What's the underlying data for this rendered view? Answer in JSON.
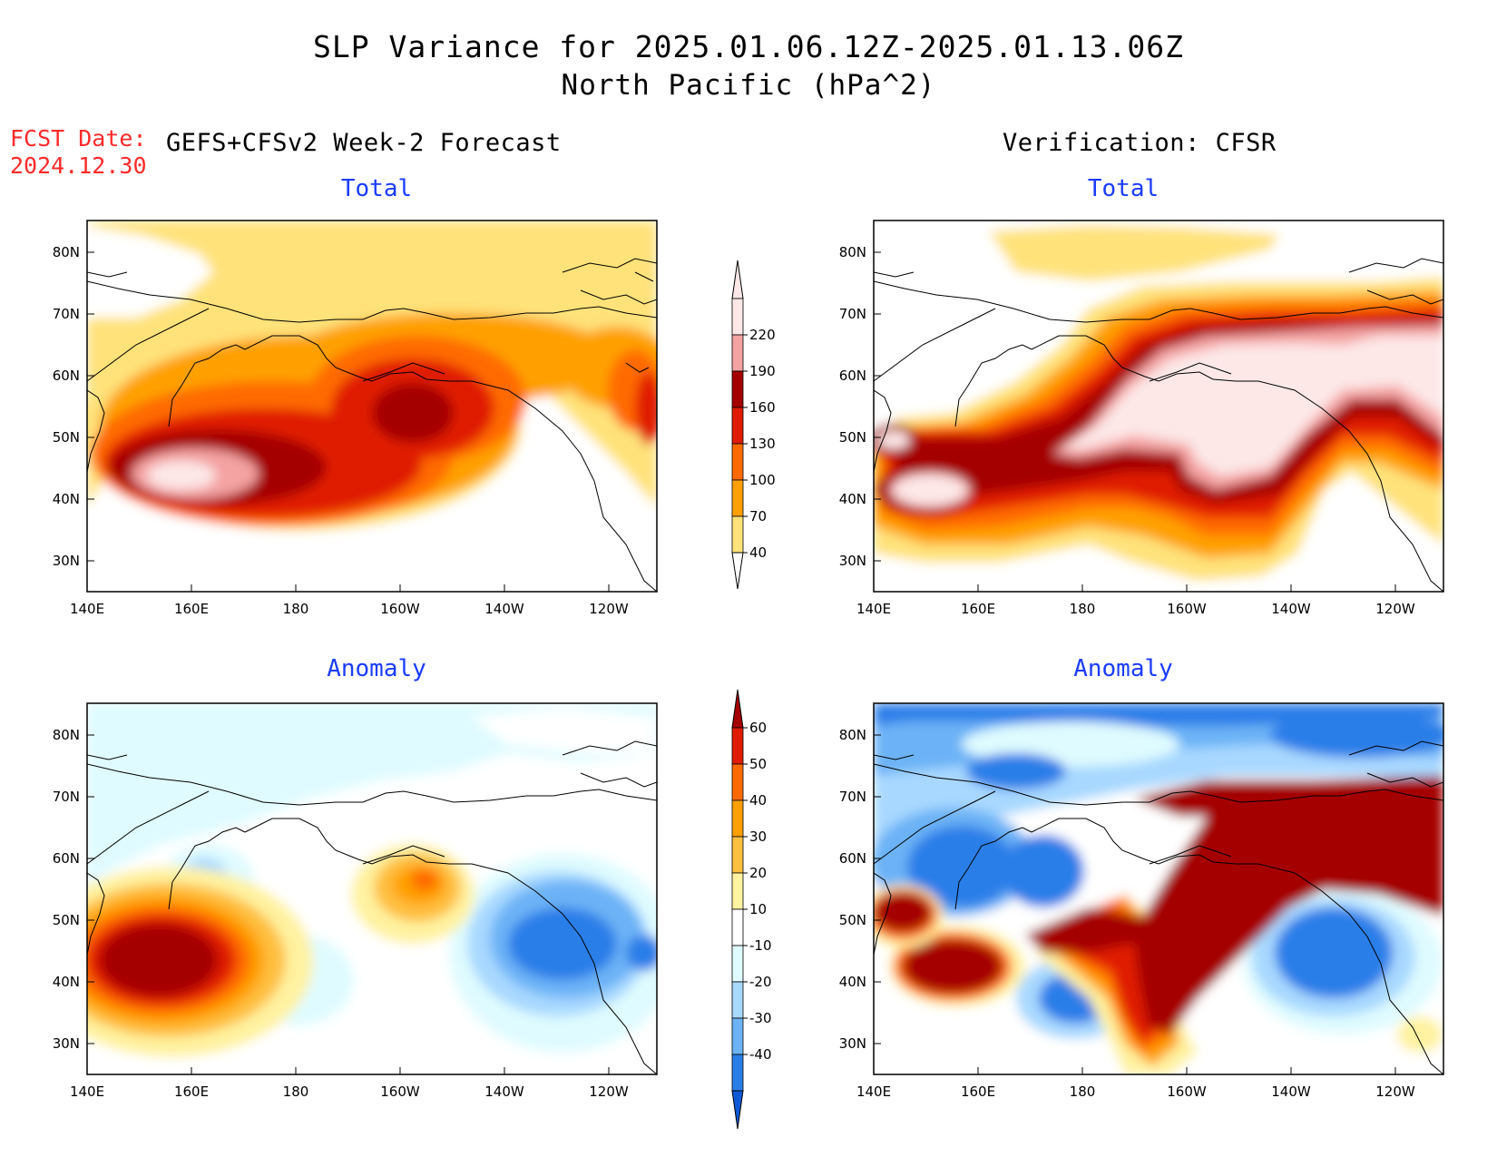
{
  "header": {
    "title_line1": "SLP Variance for 2025.01.06.12Z-2025.01.13.06Z",
    "title_line2": "North Pacific (hPa^2)",
    "fcst_label": "FCST Date:",
    "fcst_value": "2024.12.30",
    "left_column": "GEFS+CFSv2 Week-2 Forecast",
    "right_column": "Verification: CFSR"
  },
  "panels": {
    "total_fcst": "Total",
    "total_verif": "Total",
    "anom_fcst": "Anomaly",
    "anom_verif": "Anomaly"
  },
  "axes": {
    "lon_labels": [
      "140E",
      "160E",
      "180",
      "160W",
      "140W",
      "120W"
    ],
    "lat_labels": [
      "80N",
      "70N",
      "60N",
      "50N",
      "40N",
      "30N"
    ]
  },
  "colorbars": {
    "total": {
      "labels": [
        "220",
        "190",
        "160",
        "130",
        "100",
        "70",
        "40"
      ],
      "colors": [
        "#fde7e7",
        "#f4a2a2",
        "#a50000",
        "#e01b00",
        "#ff6a00",
        "#ffa000",
        "#ffe27a"
      ]
    },
    "anomaly": {
      "labels": [
        "60",
        "50",
        "40",
        "30",
        "20",
        "10",
        "-10",
        "-20",
        "-30",
        "-40"
      ],
      "colors": [
        "#a50000",
        "#e01b00",
        "#ff6a00",
        "#ffa000",
        "#ffbf40",
        "#fff2a0",
        "#ffffff",
        "#dffbff",
        "#a8d8ff",
        "#6cb2f6",
        "#2a7ee8",
        "#0f5ad6"
      ]
    }
  }
}
